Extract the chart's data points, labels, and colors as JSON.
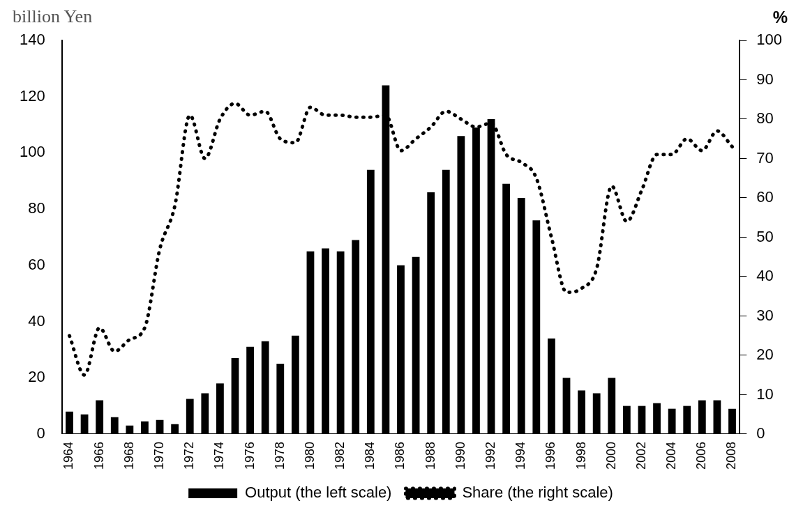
{
  "chart_data": {
    "type": "bar",
    "ylabel": "billion Yen",
    "y2label": "%",
    "categories": [
      "1964",
      null,
      "1966",
      null,
      "1968",
      null,
      "1970",
      null,
      "1972",
      null,
      "1974",
      null,
      "1976",
      null,
      "1978",
      null,
      "1980",
      null,
      "1982",
      null,
      "1984",
      null,
      "1986",
      null,
      "1988",
      null,
      "1990",
      null,
      "1992",
      null,
      "1994",
      null,
      "1996",
      null,
      "1998",
      null,
      "2000",
      null,
      "2002",
      null,
      "2004",
      null,
      "2006",
      null,
      "2008"
    ],
    "series": [
      {
        "name": "Output (the left scale)",
        "color": "#000000",
        "values": [
          8,
          7,
          12,
          6,
          3,
          4.5,
          5,
          3.5,
          12.5,
          14.5,
          18,
          27,
          31,
          33,
          25,
          35,
          65,
          66,
          65,
          69,
          94,
          124,
          60,
          63,
          86,
          94,
          106,
          109,
          112,
          89,
          84,
          76,
          34,
          20,
          15.5,
          14.5,
          20,
          10,
          10,
          11,
          9,
          10,
          12,
          12,
          9
        ]
      },
      {
        "name": "Share (the right scale)",
        "type": "line",
        "axis": "y2",
        "color": "#000000",
        "line_style": "dotted",
        "values": [
          25,
          15,
          27,
          21,
          24,
          27,
          47,
          58,
          81,
          70,
          80,
          84,
          81,
          82,
          75,
          74,
          83,
          81,
          81,
          80.5,
          80.5,
          81,
          72,
          75,
          78,
          82,
          80,
          78,
          79,
          71,
          69,
          65,
          50,
          36,
          37,
          42,
          63,
          54,
          62,
          71,
          71,
          75,
          72,
          77,
          73
        ]
      }
    ],
    "ylim": [
      0,
      140
    ],
    "yticks": [
      0,
      20,
      40,
      60,
      80,
      100,
      120,
      140
    ],
    "y2lim": [
      0,
      100
    ],
    "y2ticks": [
      0,
      10,
      20,
      30,
      40,
      50,
      60,
      70,
      80,
      90,
      100
    ],
    "marker": "none",
    "legend": "bottom"
  }
}
